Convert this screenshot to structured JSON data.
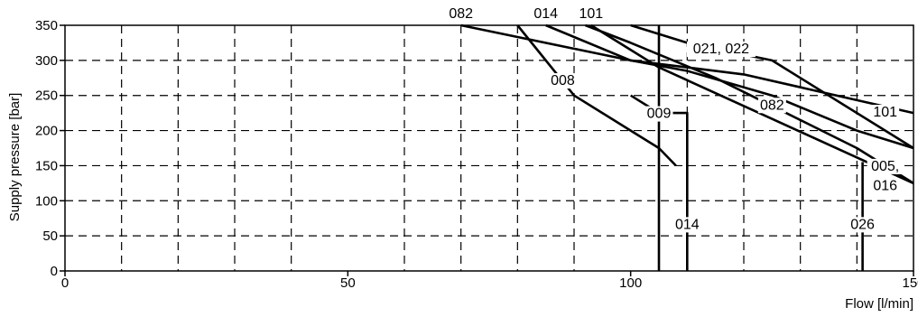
{
  "chart_data": {
    "type": "line",
    "title": "",
    "xlabel": "Flow [l/min]",
    "ylabel": "Supply pressure [bar]",
    "xlim": [
      0,
      150
    ],
    "ylim": [
      0,
      350
    ],
    "x_ticks": [
      0,
      50,
      100,
      150
    ],
    "y_ticks": [
      0,
      50,
      100,
      150,
      200,
      250,
      300,
      350
    ],
    "x_grid": [
      10,
      20,
      30,
      40,
      60,
      70,
      80,
      90,
      110,
      120,
      130,
      140
    ],
    "y_grid": [
      50,
      100,
      150,
      200,
      250,
      300
    ],
    "grid": true,
    "series": [
      {
        "name": "082",
        "points": [
          [
            70,
            350
          ],
          [
            100,
            300
          ],
          [
            110,
            285
          ],
          [
            125,
            250
          ],
          [
            140,
            200
          ],
          [
            150,
            175
          ]
        ]
      },
      {
        "name": "014",
        "points": [
          [
            85,
            350
          ],
          [
            100,
            300
          ],
          [
            120,
            280
          ],
          [
            150,
            225
          ]
        ]
      },
      {
        "name": "101",
        "points": [
          [
            93,
            350
          ],
          [
            105,
            290
          ],
          [
            150,
            125
          ]
        ]
      },
      {
        "name": "008",
        "points": [
          [
            80,
            350
          ],
          [
            90,
            250
          ],
          [
            95,
            225
          ],
          [
            100,
            200
          ],
          [
            105,
            175
          ],
          [
            108,
            150
          ]
        ]
      },
      {
        "name": "009",
        "points": [
          [
            100,
            250
          ],
          [
            105,
            225
          ],
          [
            110,
            225
          ],
          [
            110,
            0
          ]
        ]
      },
      {
        "name": "021, 022",
        "points": [
          [
            100,
            350
          ],
          [
            110,
            325
          ],
          [
            125,
            300
          ],
          [
            150,
            175
          ]
        ]
      },
      {
        "name": "005, 016",
        "points": [
          [
            92,
            350
          ],
          [
            100,
            325
          ],
          [
            115,
            275
          ],
          [
            140,
            175
          ],
          [
            150,
            125
          ]
        ]
      },
      {
        "name": "014",
        "points": [
          [
            105,
            350
          ],
          [
            105,
            0
          ]
        ]
      },
      {
        "name": "026",
        "points": [
          [
            141,
            155
          ],
          [
            141,
            0
          ]
        ]
      }
    ],
    "annotations": [
      {
        "text": "082",
        "x": 70,
        "y": 360
      },
      {
        "text": "014",
        "x": 85,
        "y": 360
      },
      {
        "text": "101",
        "x": 93,
        "y": 360
      },
      {
        "text": "021, 022",
        "x": 116,
        "y": 310
      },
      {
        "text": "008",
        "x": 88,
        "y": 265
      },
      {
        "text": "009",
        "x": 105,
        "y": 218
      },
      {
        "text": "082",
        "x": 125,
        "y": 230
      },
      {
        "text": "101",
        "x": 145,
        "y": 220
      },
      {
        "text": "005,",
        "x": 145,
        "y": 143
      },
      {
        "text": "016",
        "x": 145,
        "y": 115
      },
      {
        "text": "014",
        "x": 110,
        "y": 60
      },
      {
        "text": "026",
        "x": 141,
        "y": 60
      }
    ]
  }
}
